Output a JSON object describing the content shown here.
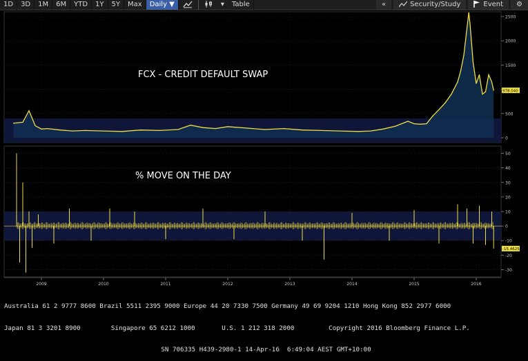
{
  "toolbar": {
    "periods": [
      "1D",
      "3D",
      "1M",
      "6M",
      "YTD",
      "1Y",
      "5Y",
      "Max"
    ],
    "frequency": "Daily ▼",
    "table_label": "Table",
    "nav_back": "«",
    "security_study": "Security/Study",
    "event": "Event",
    "settings_glyph": "⚙"
  },
  "footer": {
    "line1": "Australia 61 2 9777 8600 Brazil 5511 2395 9000 Europe 44 20 7330 7500 Germany 49 69 9204 1210 Hong Kong 852 2977 6000",
    "line2": "Japan 81 3 3201 8900        Singapore 65 6212 1000       U.S. 1 212 318 2000         Copyright 2016 Bloomberg Finance L.P.",
    "line3": "SN 706335 H439-2980-1 14-Apr-16  6:49:04 AEST GMT+10:00"
  },
  "colors": {
    "line": "#f0e040",
    "fill": "#0f2c50",
    "band": "#10163a",
    "grid": "#2a2a2a"
  },
  "chart_data": [
    {
      "type": "area",
      "title": "FCX - CREDIT DEFAULT SWAP",
      "x_ticks": [
        "2009",
        "2010",
        "2011",
        "2012",
        "2013",
        "2014",
        "2015",
        "2016"
      ],
      "y_ticks": [
        0,
        500,
        1000,
        1500,
        2000,
        2500
      ],
      "ylim": [
        -100,
        2600
      ],
      "last_value_label": "978.040",
      "x": [
        2008.55,
        2008.7,
        2008.8,
        2008.9,
        2009.0,
        2009.1,
        2009.3,
        2009.5,
        2009.7,
        2010.0,
        2010.3,
        2010.6,
        2010.9,
        2011.2,
        2011.4,
        2011.6,
        2011.8,
        2012.0,
        2012.3,
        2012.6,
        2012.9,
        2013.2,
        2013.5,
        2013.8,
        2014.1,
        2014.3,
        2014.5,
        2014.7,
        2014.9,
        2015.0,
        2015.1,
        2015.2,
        2015.3,
        2015.4,
        2015.5,
        2015.6,
        2015.7,
        2015.75,
        2015.8,
        2015.85,
        2015.88,
        2015.9,
        2015.95,
        2016.0,
        2016.05,
        2016.1,
        2016.15,
        2016.2,
        2016.25,
        2016.28
      ],
      "y": [
        300,
        320,
        560,
        250,
        180,
        190,
        160,
        140,
        150,
        140,
        130,
        160,
        150,
        170,
        260,
        210,
        190,
        230,
        200,
        170,
        190,
        160,
        150,
        140,
        130,
        140,
        180,
        240,
        340,
        290,
        280,
        290,
        450,
        580,
        720,
        900,
        1150,
        1380,
        1700,
        2250,
        2580,
        2350,
        1550,
        1120,
        1300,
        900,
        950,
        1300,
        1150,
        978
      ]
    },
    {
      "type": "bar",
      "title": "% MOVE ON THE DAY",
      "x_ticks": [
        "2009",
        "2010",
        "2011",
        "2012",
        "2013",
        "2014",
        "2015",
        "2016"
      ],
      "y_ticks": [
        -30,
        -20,
        -10,
        0,
        10,
        20,
        30,
        40,
        50
      ],
      "ylim": [
        -35,
        55
      ],
      "last_value_label": "-15.4625",
      "x": [
        2008.6,
        2008.65,
        2008.7,
        2008.75,
        2008.8,
        2008.85,
        2008.95,
        2009.2,
        2009.45,
        2009.8,
        2010.1,
        2010.5,
        2011.0,
        2011.6,
        2012.1,
        2012.6,
        2013.2,
        2013.55,
        2014.0,
        2014.6,
        2015.0,
        2015.4,
        2015.7,
        2015.85,
        2015.95,
        2016.05,
        2016.15,
        2016.25,
        2016.28
      ],
      "y": [
        50,
        -25,
        30,
        -32,
        10,
        -15,
        8,
        -12,
        12,
        -10,
        12,
        10,
        -9,
        12,
        -9,
        10,
        -10,
        -23,
        9,
        -10,
        11,
        -12,
        15,
        12,
        -12,
        14,
        -13,
        10,
        -15.5
      ]
    }
  ]
}
